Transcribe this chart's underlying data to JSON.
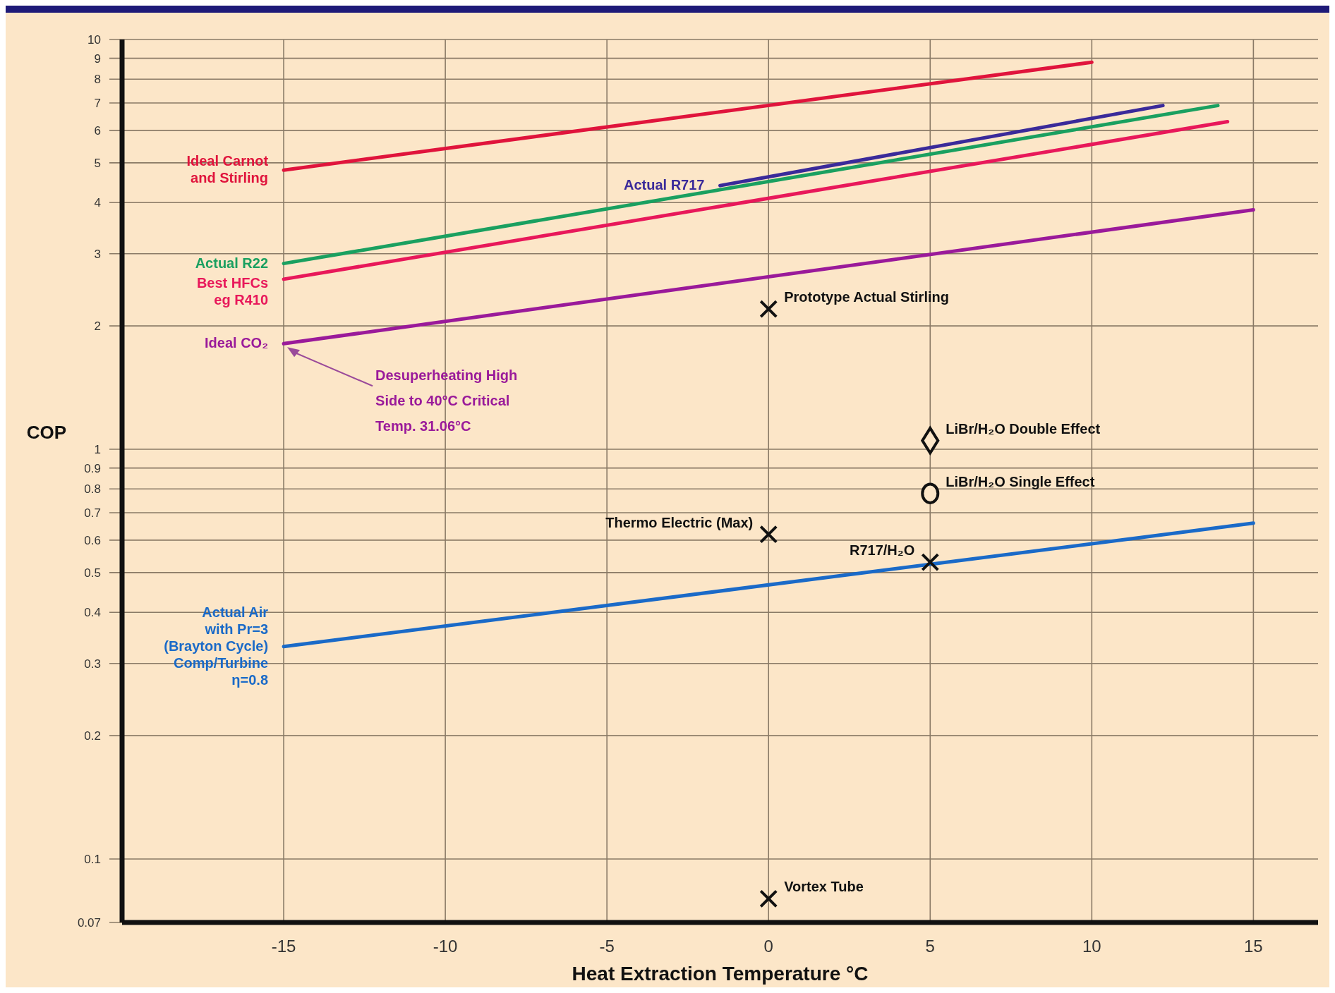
{
  "chart_data": {
    "type": "line",
    "xlabel": "Heat Extraction Temperature °C",
    "ylabel": "COP",
    "log": "y",
    "grid": true,
    "xlim": [
      -20,
      17
    ],
    "xticks": [
      -15,
      -10,
      -5,
      0,
      5,
      10,
      15
    ],
    "ylim": [
      0.07,
      10
    ],
    "yticks": [
      10,
      9,
      8,
      7,
      6,
      5,
      4,
      3,
      2,
      1,
      0.9,
      0.8,
      0.7,
      0.6,
      0.5,
      0.4,
      0.3,
      0.2,
      0.1,
      0.07
    ],
    "series": [
      {
        "name": "Ideal Carnot\nand Stirling",
        "color": "#e0143c",
        "x": [
          -15,
          10
        ],
        "values": [
          4.8,
          8.8
        ]
      },
      {
        "name": "Actual R717",
        "color": "#3a2a9a",
        "x": [
          -1.5,
          12.2
        ],
        "values": [
          4.4,
          6.9
        ]
      },
      {
        "name": "Actual R22",
        "color": "#1aa060",
        "x": [
          -15,
          13.9
        ],
        "values": [
          2.84,
          6.9
        ]
      },
      {
        "name": "Best HFCs\neg R410",
        "color": "#e8185a",
        "x": [
          -15,
          14.2
        ],
        "values": [
          2.6,
          6.3
        ]
      },
      {
        "name": "Ideal CO₂",
        "color": "#9a1a9a",
        "x": [
          -15,
          15
        ],
        "values": [
          1.81,
          3.84
        ]
      },
      {
        "name": "Actual Air\nwith Pr=3\n(Brayton Cycle)\nComp/Turbine\nη=0.8",
        "color": "#1a6ac8",
        "x": [
          -15,
          15
        ],
        "values": [
          0.33,
          0.66
        ]
      },
      {
        "type": "scatter",
        "name": "Prototype Actual Stirling",
        "color": "#111111",
        "marker": "cross",
        "x": [
          0
        ],
        "values": [
          2.2
        ]
      },
      {
        "type": "scatter",
        "name": "LiBr/H₂O Double Effect",
        "color": "#111111",
        "marker": "diamond",
        "x": [
          5
        ],
        "values": [
          1.05
        ]
      },
      {
        "type": "scatter",
        "name": "LiBr/H₂O Single Effect",
        "color": "#111111",
        "marker": "circle",
        "x": [
          5
        ],
        "values": [
          0.78
        ]
      },
      {
        "type": "scatter",
        "name": "Thermo Electric (Max)",
        "color": "#111111",
        "marker": "cross",
        "x": [
          0
        ],
        "values": [
          0.62
        ]
      },
      {
        "type": "scatter",
        "name": "R717/H₂O",
        "color": "#111111",
        "marker": "cross",
        "x": [
          5
        ],
        "values": [
          0.53
        ]
      },
      {
        "type": "scatter",
        "name": "Vortex Tube",
        "color": "#111111",
        "marker": "cross",
        "x": [
          0
        ],
        "values": [
          0.08
        ]
      }
    ],
    "annotations": [
      "Desuperheating High Side to 40°C Critical Temp. 31.06°C"
    ]
  }
}
